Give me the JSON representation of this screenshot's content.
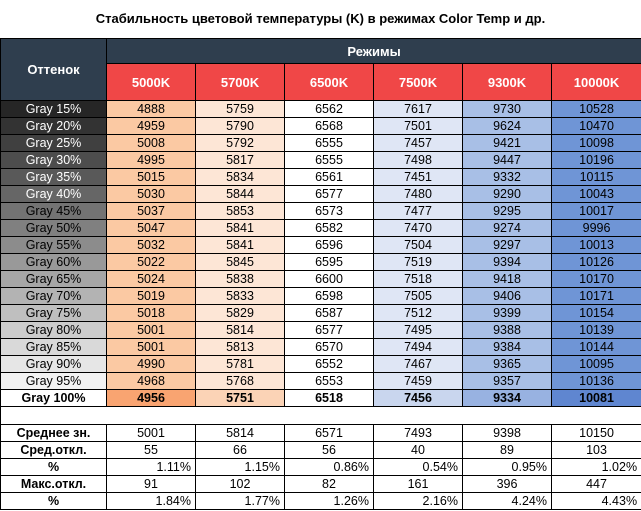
{
  "title": "Стабильность цветовой температуры (K) в режимах Color Temp и др.",
  "header": {
    "row_label": "Оттенок",
    "group_label": "Режимы",
    "modes": [
      "5000K",
      "5700K",
      "6500K",
      "7500K",
      "9300K",
      "10000K"
    ]
  },
  "colors": {
    "header_dark": "#2f3e4e",
    "header_red": "#f04747",
    "col_5000": [
      "#fbc9a3",
      "#f9a471"
    ],
    "col_5700": [
      "#fde6d6",
      "#fbd3b6"
    ],
    "col_6500": [
      "#ffffff",
      "#ffffff"
    ],
    "col_7500": [
      "#dfe6f5",
      "#c9d6ee"
    ],
    "col_9300": [
      "#a8bfe6",
      "#98b2e1"
    ],
    "col_10000": [
      "#6f95d6",
      "#5f86d0"
    ]
  },
  "rows": [
    {
      "label": "Gray 15%",
      "values": [
        "4888",
        "5759",
        "6562",
        "7617",
        "9730",
        "10528"
      ]
    },
    {
      "label": "Gray 20%",
      "values": [
        "4959",
        "5790",
        "6568",
        "7501",
        "9624",
        "10470"
      ]
    },
    {
      "label": "Gray 25%",
      "values": [
        "5008",
        "5792",
        "6555",
        "7457",
        "9421",
        "10098"
      ]
    },
    {
      "label": "Gray 30%",
      "values": [
        "4995",
        "5817",
        "6555",
        "7498",
        "9447",
        "10196"
      ]
    },
    {
      "label": "Gray 35%",
      "values": [
        "5015",
        "5834",
        "6561",
        "7451",
        "9332",
        "10115"
      ]
    },
    {
      "label": "Gray 40%",
      "values": [
        "5030",
        "5844",
        "6577",
        "7480",
        "9290",
        "10043"
      ]
    },
    {
      "label": "Gray 45%",
      "values": [
        "5037",
        "5853",
        "6573",
        "7477",
        "9295",
        "10017"
      ]
    },
    {
      "label": "Gray 50%",
      "values": [
        "5047",
        "5841",
        "6582",
        "7470",
        "9274",
        "9996"
      ]
    },
    {
      "label": "Gray 55%",
      "values": [
        "5032",
        "5841",
        "6596",
        "7504",
        "9297",
        "10013"
      ]
    },
    {
      "label": "Gray 60%",
      "values": [
        "5022",
        "5845",
        "6595",
        "7519",
        "9394",
        "10126"
      ]
    },
    {
      "label": "Gray 65%",
      "values": [
        "5024",
        "5838",
        "6600",
        "7518",
        "9418",
        "10170"
      ]
    },
    {
      "label": "Gray 70%",
      "values": [
        "5019",
        "5833",
        "6598",
        "7505",
        "9406",
        "10171"
      ]
    },
    {
      "label": "Gray 75%",
      "values": [
        "5018",
        "5829",
        "6587",
        "7512",
        "9399",
        "10154"
      ]
    },
    {
      "label": "Gray 80%",
      "values": [
        "5001",
        "5814",
        "6577",
        "7495",
        "9388",
        "10139"
      ]
    },
    {
      "label": "Gray 85%",
      "values": [
        "5001",
        "5813",
        "6570",
        "7494",
        "9384",
        "10144"
      ]
    },
    {
      "label": "Gray 90%",
      "values": [
        "4990",
        "5781",
        "6552",
        "7467",
        "9365",
        "10095"
      ]
    },
    {
      "label": "Gray 95%",
      "values": [
        "4968",
        "5768",
        "6553",
        "7459",
        "9357",
        "10136"
      ]
    },
    {
      "label": "Gray 100%",
      "values": [
        "4956",
        "5751",
        "6518",
        "7456",
        "9334",
        "10081"
      ]
    }
  ],
  "stats": [
    {
      "label": "Среднее зн.",
      "values": [
        "5001",
        "5814",
        "6571",
        "7493",
        "9398",
        "10150"
      ],
      "pct": false
    },
    {
      "label": "Сред.откл.",
      "values": [
        "55",
        "66",
        "56",
        "40",
        "89",
        "103"
      ],
      "pct": false
    },
    {
      "label": "%",
      "values": [
        "1.11%",
        "1.15%",
        "0.86%",
        "0.54%",
        "0.95%",
        "1.02%"
      ],
      "pct": true
    },
    {
      "label": "Макс.откл.",
      "values": [
        "91",
        "102",
        "82",
        "161",
        "396",
        "447"
      ],
      "pct": false
    },
    {
      "label": "%",
      "values": [
        "1.84%",
        "1.77%",
        "1.26%",
        "2.16%",
        "4.24%",
        "4.43%"
      ],
      "pct": true
    }
  ]
}
